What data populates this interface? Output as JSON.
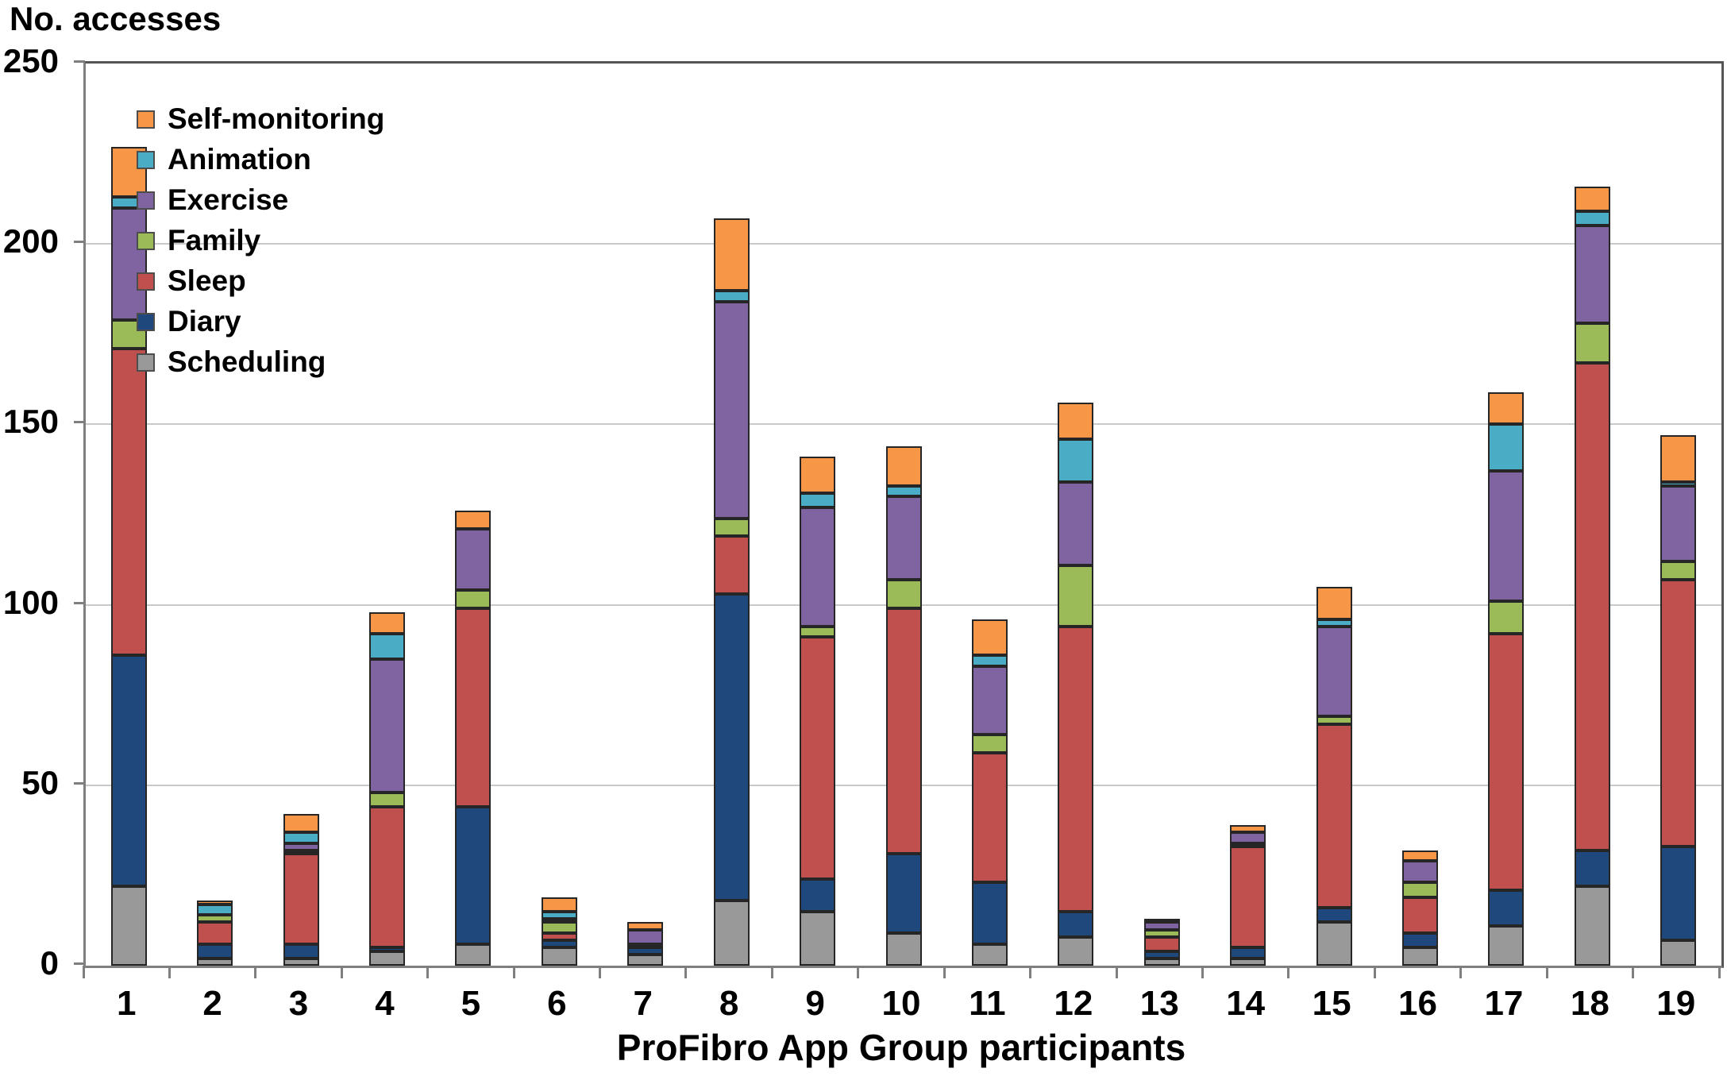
{
  "title": "No. accesses",
  "axis": {
    "yticks": [
      0,
      50,
      100,
      150,
      200,
      250
    ],
    "ylim": [
      0,
      250
    ]
  },
  "colors": {
    "self_monitoring": "#F79646",
    "animation": "#4BACC6",
    "exercise": "#8064A2",
    "family": "#9BBB59",
    "sleep": "#C0504D",
    "diary": "#1F497D",
    "scheduling": "#999999",
    "grid": "#c9c9c9",
    "axis": "#7f7f7f"
  },
  "chart_data": {
    "type": "bar",
    "stacked": true,
    "title": "No. accesses",
    "xlabel": "ProFibro App Group participants",
    "ylabel": "No. accesses",
    "ylim": [
      0,
      250
    ],
    "yticks": [
      0,
      50,
      100,
      150,
      200,
      250
    ],
    "grid": true,
    "legend_position": "upper-left-inside",
    "legend_order": [
      "Self-monitoring",
      "Animation",
      "Exercise",
      "Family",
      "Sleep",
      "Diary",
      "Scheduling"
    ],
    "categories": [
      "1",
      "2",
      "3",
      "4",
      "5",
      "6",
      "7",
      "8",
      "9",
      "10",
      "11",
      "12",
      "13",
      "14",
      "15",
      "16",
      "17",
      "18",
      "19"
    ],
    "series": [
      {
        "name": "Scheduling",
        "color": "#999999",
        "values": [
          22,
          2,
          2,
          4,
          6,
          5,
          3,
          18,
          15,
          9,
          6,
          8,
          2,
          2,
          12,
          5,
          11,
          22,
          7
        ]
      },
      {
        "name": "Diary",
        "color": "#1F497D",
        "values": [
          64,
          4,
          4,
          1,
          38,
          2,
          2,
          85,
          9,
          22,
          17,
          7,
          2,
          3,
          4,
          4,
          10,
          10,
          26
        ]
      },
      {
        "name": "Sleep",
        "color": "#C0504D",
        "values": [
          85,
          6,
          25,
          39,
          55,
          2,
          0,
          16,
          67,
          68,
          36,
          79,
          4,
          28,
          51,
          10,
          71,
          135,
          74
        ]
      },
      {
        "name": "Family",
        "color": "#9BBB59",
        "values": [
          8,
          2,
          1,
          4,
          5,
          3,
          1,
          5,
          3,
          8,
          5,
          17,
          2,
          1,
          2,
          4,
          9,
          11,
          5
        ]
      },
      {
        "name": "Exercise",
        "color": "#8064A2",
        "values": [
          31,
          0,
          2,
          37,
          17,
          1,
          4,
          60,
          33,
          23,
          19,
          23,
          2,
          3,
          25,
          6,
          36,
          27,
          21
        ]
      },
      {
        "name": "Animation",
        "color": "#4BACC6",
        "values": [
          3,
          3,
          3,
          7,
          0,
          2,
          0,
          3,
          4,
          3,
          3,
          12,
          0,
          0,
          2,
          0,
          13,
          4,
          1
        ]
      },
      {
        "name": "Self-monitoring",
        "color": "#F79646",
        "values": [
          14,
          1,
          5,
          6,
          5,
          4,
          2,
          20,
          10,
          11,
          10,
          10,
          1,
          2,
          9,
          3,
          9,
          7,
          13
        ]
      }
    ],
    "totals": [
      227,
      18,
      42,
      98,
      126,
      19,
      12,
      207,
      141,
      144,
      96,
      156,
      13,
      39,
      105,
      32,
      159,
      216,
      147
    ]
  }
}
